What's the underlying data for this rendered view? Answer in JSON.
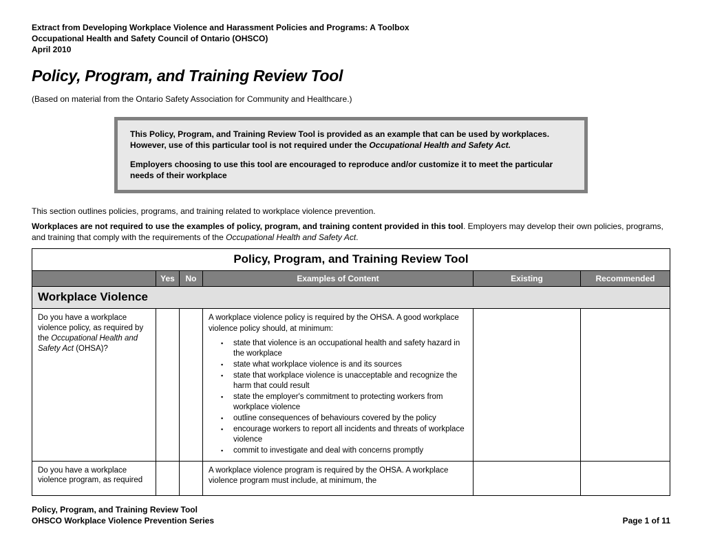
{
  "header": {
    "line1": "Extract from Developing Workplace Violence and Harassment Policies and Programs: A Toolbox",
    "line2": "Occupational Health and Safety Council of Ontario (OHSCO)",
    "line3": "April 2010"
  },
  "title": "Policy, Program, and Training Review Tool",
  "subtitle": "(Based on material from the Ontario Safety Association for Community and Healthcare.)",
  "callout": {
    "p1_a": "This Policy, Program, and Training Review Tool is provided as an example that can be used by workplaces.  However, use of this particular tool is not required under the ",
    "p1_act": "Occupational Health and Safety Act.",
    "p2": "Employers choosing to use this tool are encouraged to reproduce and/or customize it to meet the particular needs of their workplace"
  },
  "intro": "This section outlines policies, programs, and training related to workplace violence prevention.",
  "note": {
    "bold": "Workplaces are not required to use the examples of policy, program, and training content provided in this tool",
    "rest_a": ". Employers may develop their own policies, programs, and training that comply with the requirements of the ",
    "rest_italic": "Occupational Health and Safety Act",
    "rest_b": "."
  },
  "table": {
    "title": "Policy, Program, and Training Review Tool",
    "headers": {
      "yes": "Yes",
      "no": "No",
      "content": "Examples of Content",
      "existing": "Existing",
      "recommended": "Recommended"
    },
    "section_label": "Workplace Violence",
    "row1": {
      "question_a": "Do you have a workplace violence policy, as required by the ",
      "question_italic": "Occupational Health and Safety Act",
      "question_b": " (OHSA)?",
      "content_intro": "A workplace violence policy is required by the OHSA. A good workplace violence policy should, at minimum:",
      "bullets": [
        "state that violence is an occupational health and safety hazard in the workplace",
        "state what workplace violence is and its sources",
        "state that workplace violence is unacceptable and recognize the harm that could result",
        "state the employer's commitment to protecting workers from workplace violence",
        "outline consequences of behaviours covered by the policy",
        "encourage workers to report all incidents and threats of workplace violence",
        "commit to investigate and deal with concerns promptly"
      ]
    },
    "row2": {
      "question": "Do you have a workplace violence program, as required",
      "content_intro": "A workplace violence program is required by the OHSA. A workplace violence program must include, at minimum, the"
    }
  },
  "footer": {
    "line1": "Policy, Program, and Training Review Tool",
    "line2_left": "OHSCO Workplace Violence Prevention Series",
    "line2_right": "Page 1 of 11"
  },
  "colors": {
    "header_bg": "#808080",
    "header_text": "#ffffff",
    "section_bg": "#e0e0e0",
    "callout_border": "#808080",
    "callout_bg": "#e8e8e8",
    "page_bg": "#ffffff",
    "text": "#000000"
  }
}
